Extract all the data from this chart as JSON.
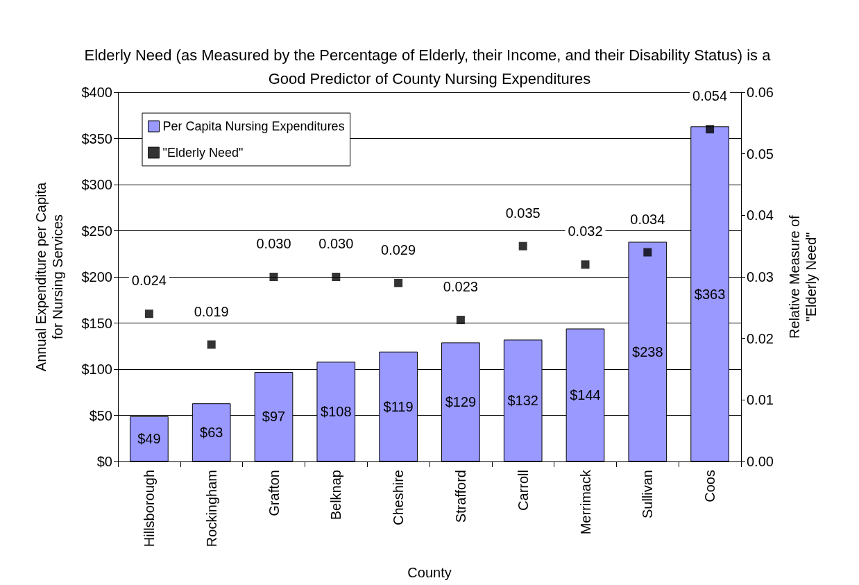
{
  "chart_data": {
    "type": "bar",
    "title": "Elderly Need (as Measured by the Percentage of Elderly, their Income, and their Disability Status) is a Good Predictor of County Nursing Expenditures",
    "xlabel": "County",
    "ylabel": "Annual Expenditure per Capita\nfor Nursing Services",
    "y2label": "Relative Measure of\n\"Elderly Need\"",
    "categories": [
      "Hillsborough",
      "Rockingham",
      "Grafton",
      "Belknap",
      "Cheshire",
      "Strafford",
      "Carroll",
      "Merrimack",
      "Sullivan",
      "Coos"
    ],
    "series": [
      {
        "name": "Per Capita Nursing Expenditures",
        "color": "#9999ff",
        "values": [
          49,
          63,
          97,
          108,
          119,
          129,
          132,
          144,
          238,
          363
        ],
        "value_labels": [
          "$49",
          "$63",
          "$97",
          "$108",
          "$119",
          "$129",
          "$132",
          "$144",
          "$238",
          "$363"
        ]
      },
      {
        "name": "\"Elderly Need\"",
        "type": "scatter",
        "axis": "y2",
        "color": "#000000",
        "marker": "square",
        "values": [
          0.024,
          0.019,
          0.03,
          0.03,
          0.029,
          0.023,
          0.035,
          0.032,
          0.034,
          0.054
        ],
        "value_labels": [
          "0.024",
          "0.019",
          "0.030",
          "0.030",
          "0.029",
          "0.023",
          "0.035",
          "0.032",
          "0.034",
          "0.054"
        ]
      }
    ],
    "ylim": [
      0,
      400
    ],
    "yticks": [
      {
        "value": 0,
        "label": "$0"
      },
      {
        "value": 50,
        "label": "$50"
      },
      {
        "value": 100,
        "label": "$100"
      },
      {
        "value": 150,
        "label": "$150"
      },
      {
        "value": 200,
        "label": "$200"
      },
      {
        "value": 250,
        "label": "$250"
      },
      {
        "value": 300,
        "label": "$300"
      },
      {
        "value": 350,
        "label": "$350"
      },
      {
        "value": 400,
        "label": "$400"
      }
    ],
    "y2lim": [
      0,
      0.06
    ],
    "y2ticks": [
      {
        "value": 0,
        "label": "0.00"
      },
      {
        "value": 0.01,
        "label": "0.01"
      },
      {
        "value": 0.02,
        "label": "0.02"
      },
      {
        "value": 0.03,
        "label": "0.03"
      },
      {
        "value": 0.04,
        "label": "0.04"
      },
      {
        "value": 0.05,
        "label": "0.05"
      },
      {
        "value": 0.06,
        "label": "0.06"
      }
    ],
    "grid": "y",
    "legend": "top left"
  }
}
